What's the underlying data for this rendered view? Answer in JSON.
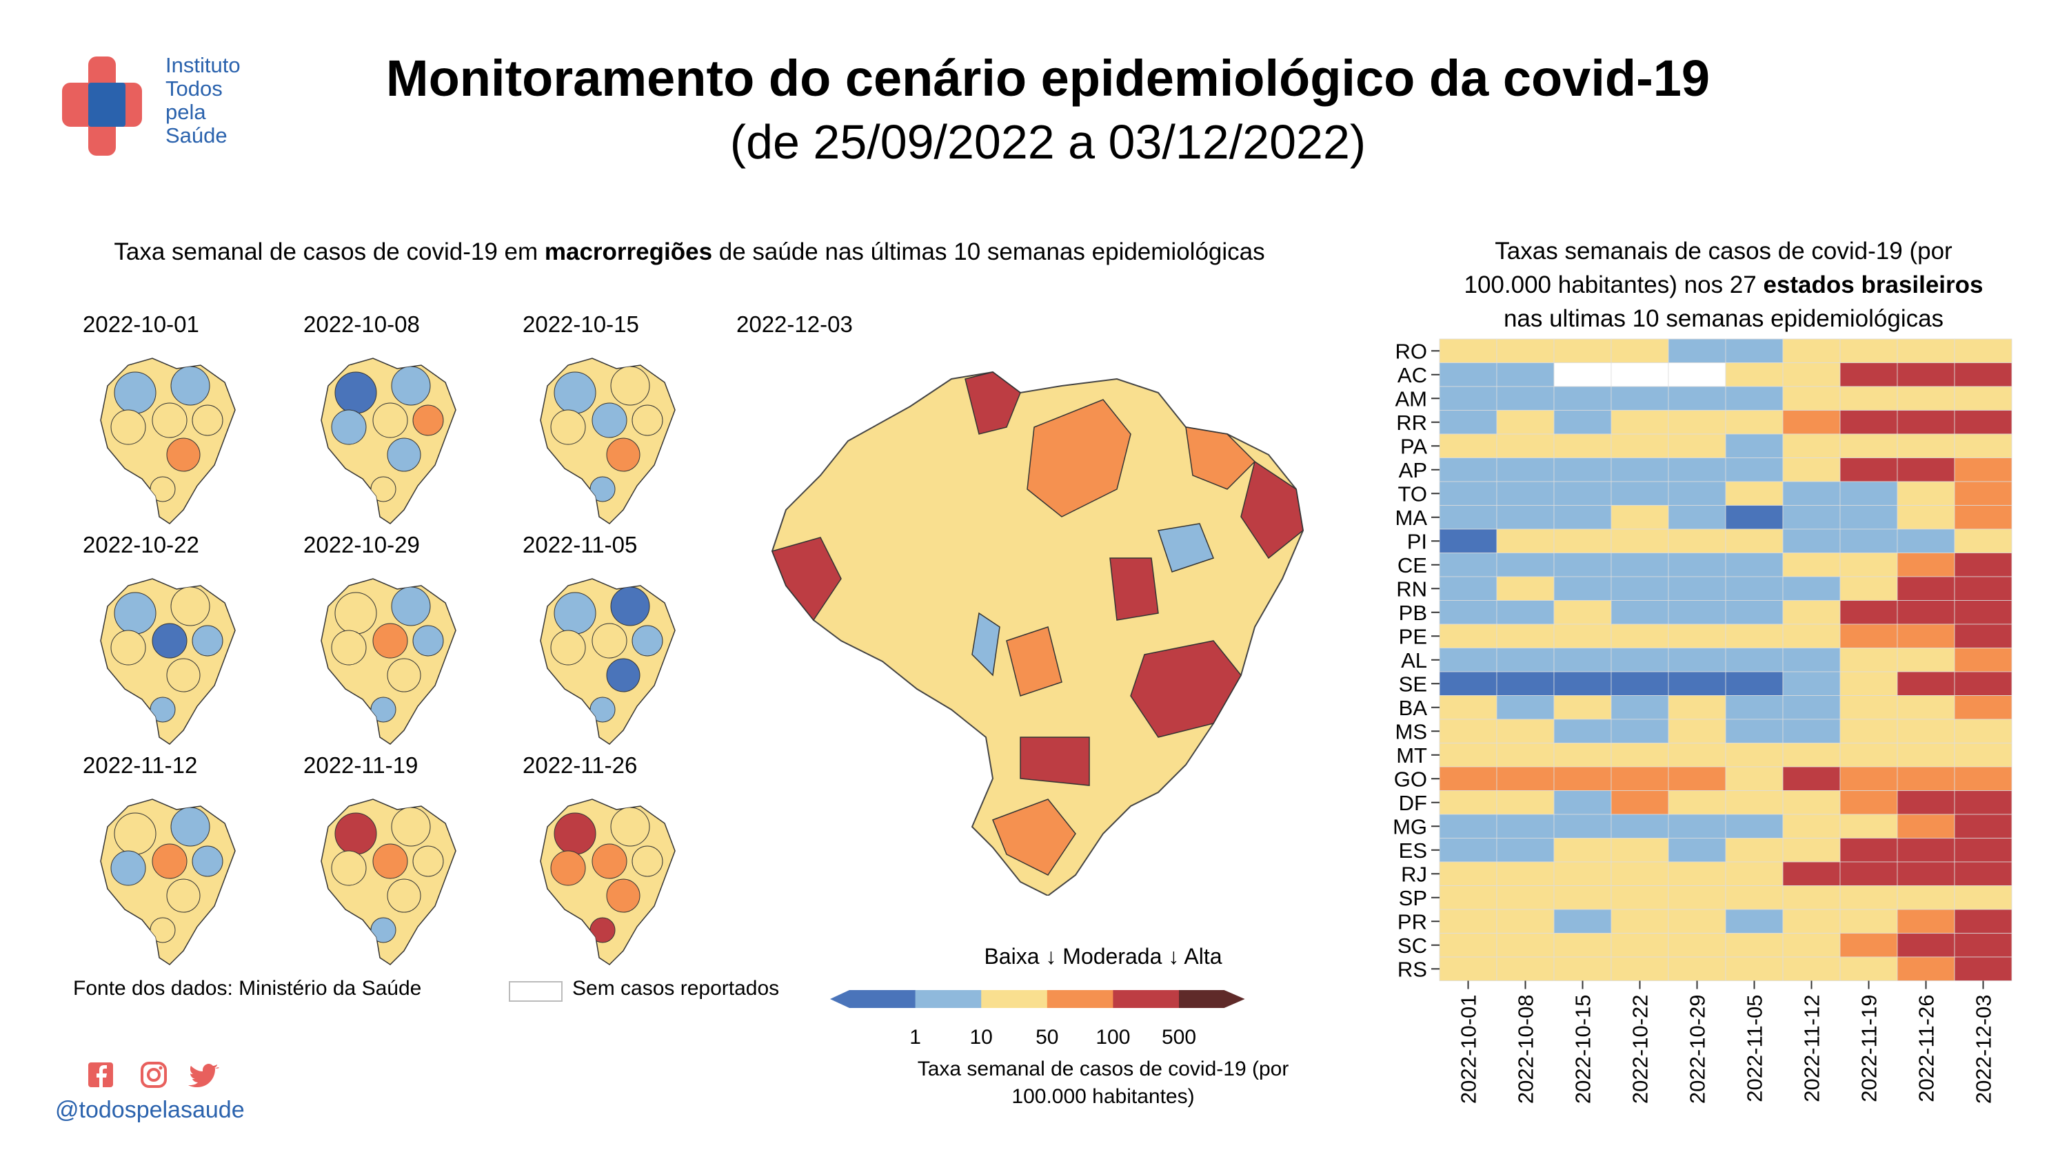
{
  "logo": {
    "lines": [
      "Instituto",
      "Todos",
      "pela",
      "Saúde"
    ]
  },
  "title": "Monitoramento do cenário epidemiológico da covid-19",
  "subtitle": "(de 25/09/2022 a 03/12/2022)",
  "maps_section": {
    "title_pre": "Taxa semanal de casos de covid-19 em ",
    "title_bold": "macrorregiões",
    "title_post": " de saúde nas últimas 10 semanas epidemiológicas",
    "small_maps": [
      "2022-10-01",
      "2022-10-08",
      "2022-10-15",
      "2022-10-22",
      "2022-10-29",
      "2022-11-05",
      "2022-11-12",
      "2022-11-19",
      "2022-11-26"
    ],
    "big_map": "2022-12-03"
  },
  "source": "Fonte dos dados: Ministério da Saúde",
  "no_cases_label": "Sem casos reportados",
  "legend": {
    "header": "Baixa ↓ Moderada ↓ Alta",
    "ticks": [
      "1",
      "10",
      "50",
      "100",
      "500"
    ],
    "caption_line1": "Taxa semanal de casos de covid-19 (por",
    "caption_line2": "100.000 habitantes)",
    "colors": [
      "#4a74ba",
      "#8fb9dc",
      "#f9df8f",
      "#f59150",
      "#bd3d43",
      "#5f2a29"
    ]
  },
  "handle": "@todospelasaude",
  "social_icons": [
    "facebook-icon",
    "instagram-icon",
    "twitter-icon"
  ],
  "heatmap": {
    "title_line1": "Taxas semanais de casos de covid-19 (por",
    "title_line2_pre": "100.000 habitantes) nos 27 ",
    "title_line2_bold": "estados brasileiros",
    "title_line3": "nas ultimas 10 semanas epidemiológicas"
  },
  "chart_data": {
    "type": "heatmap",
    "title": "Taxas semanais de casos de covid-19 (por 100.000 habitantes) nos 27 estados brasileiros nas ultimas 10 semanas epidemiológicas",
    "x": [
      "2022-10-01",
      "2022-10-08",
      "2022-10-15",
      "2022-10-22",
      "2022-10-29",
      "2022-11-05",
      "2022-11-12",
      "2022-11-19",
      "2022-11-26",
      "2022-12-03"
    ],
    "y": [
      "RO",
      "AC",
      "AM",
      "RR",
      "PA",
      "AP",
      "TO",
      "MA",
      "PI",
      "CE",
      "RN",
      "PB",
      "PE",
      "AL",
      "SE",
      "BA",
      "MS",
      "MT",
      "GO",
      "DF",
      "MG",
      "ES",
      "RJ",
      "SP",
      "PR",
      "SC",
      "RS"
    ],
    "scale_breaks": [
      1,
      10,
      50,
      100,
      500
    ],
    "category_names": [
      "<1",
      "1-10",
      "10-50",
      "50-100",
      "100-500",
      ">500",
      "Sem casos reportados"
    ],
    "category_colors": [
      "#4a74ba",
      "#8fb9dc",
      "#f9df8f",
      "#f59150",
      "#bd3d43",
      "#5f2a29",
      "#ffffff"
    ],
    "values": [
      [
        2,
        2,
        2,
        2,
        1,
        1,
        2,
        2,
        2,
        2
      ],
      [
        1,
        1,
        6,
        6,
        6,
        2,
        2,
        4,
        4,
        4
      ],
      [
        1,
        1,
        1,
        1,
        1,
        1,
        2,
        2,
        2,
        2
      ],
      [
        1,
        2,
        1,
        2,
        2,
        2,
        3,
        4,
        4,
        4
      ],
      [
        2,
        2,
        2,
        2,
        2,
        1,
        2,
        2,
        2,
        2
      ],
      [
        1,
        1,
        1,
        1,
        1,
        1,
        2,
        4,
        4,
        3
      ],
      [
        1,
        1,
        1,
        1,
        1,
        2,
        1,
        1,
        2,
        3
      ],
      [
        1,
        1,
        1,
        2,
        1,
        0,
        1,
        1,
        2,
        3
      ],
      [
        0,
        2,
        2,
        2,
        2,
        2,
        1,
        1,
        1,
        2
      ],
      [
        1,
        1,
        1,
        1,
        1,
        1,
        2,
        2,
        3,
        4
      ],
      [
        1,
        2,
        1,
        1,
        1,
        1,
        1,
        2,
        4,
        4
      ],
      [
        1,
        1,
        2,
        1,
        1,
        1,
        2,
        4,
        4,
        4
      ],
      [
        2,
        2,
        2,
        2,
        2,
        2,
        2,
        3,
        3,
        4
      ],
      [
        1,
        1,
        1,
        1,
        1,
        1,
        1,
        2,
        2,
        3
      ],
      [
        0,
        0,
        0,
        0,
        0,
        0,
        1,
        2,
        4,
        4
      ],
      [
        2,
        1,
        2,
        1,
        2,
        1,
        1,
        2,
        2,
        3
      ],
      [
        2,
        2,
        1,
        1,
        2,
        1,
        1,
        2,
        2,
        2
      ],
      [
        2,
        2,
        2,
        2,
        2,
        2,
        2,
        2,
        2,
        2
      ],
      [
        3,
        3,
        3,
        3,
        3,
        2,
        4,
        3,
        3,
        3
      ],
      [
        2,
        2,
        1,
        3,
        2,
        2,
        2,
        3,
        4,
        4
      ],
      [
        1,
        1,
        1,
        1,
        1,
        1,
        2,
        2,
        3,
        4
      ],
      [
        1,
        1,
        2,
        2,
        1,
        2,
        2,
        4,
        4,
        4
      ],
      [
        2,
        2,
        2,
        2,
        2,
        2,
        4,
        4,
        4,
        4
      ],
      [
        2,
        2,
        2,
        2,
        2,
        2,
        2,
        2,
        2,
        2
      ],
      [
        2,
        2,
        1,
        2,
        2,
        1,
        2,
        2,
        3,
        4
      ],
      [
        2,
        2,
        2,
        2,
        2,
        2,
        2,
        3,
        4,
        4
      ],
      [
        2,
        2,
        2,
        2,
        2,
        2,
        2,
        2,
        3,
        4
      ]
    ]
  }
}
